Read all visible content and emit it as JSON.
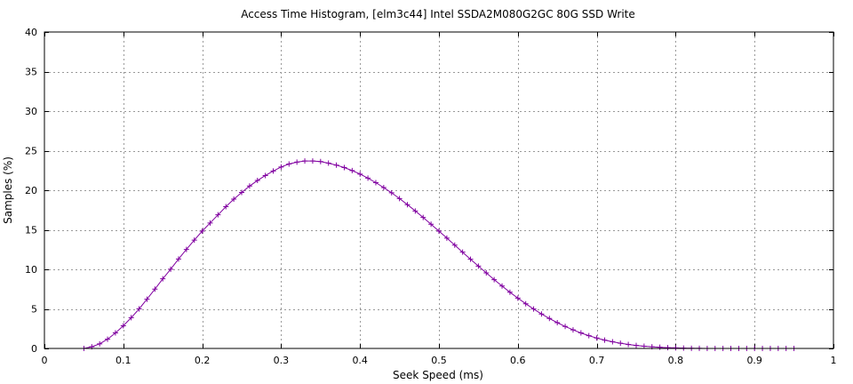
{
  "chart_data": {
    "type": "line",
    "title": "Access Time Histogram, [elm3c44] Intel SSDA2M080G2GC 80G SSD Write",
    "xlabel": "Seek Speed (ms)",
    "ylabel": "Samples (%)",
    "xlim": [
      0,
      1
    ],
    "ylim": [
      0,
      40
    ],
    "xticks": [
      0,
      0.1,
      0.2,
      0.3,
      0.4,
      0.5,
      0.6,
      0.7,
      0.8,
      0.9,
      1
    ],
    "xtick_labels": [
      "0",
      "0.1",
      "0.2",
      "0.3",
      "0.4",
      "0.5",
      "0.6",
      "0.7",
      "0.8",
      "0.9",
      "1"
    ],
    "yticks": [
      0,
      5,
      10,
      15,
      20,
      25,
      30,
      35,
      40
    ],
    "ytick_labels": [
      "0",
      "5",
      "10",
      "15",
      "20",
      "25",
      "30",
      "35",
      "40"
    ],
    "grid": true,
    "marker": "plus",
    "series_color": "#8000a0",
    "series": [
      {
        "x": [
          0.05,
          0.06,
          0.07,
          0.08,
          0.09,
          0.1,
          0.11,
          0.12,
          0.13,
          0.14,
          0.15,
          0.16,
          0.17,
          0.18,
          0.19,
          0.2,
          0.21,
          0.22,
          0.23,
          0.24,
          0.25,
          0.26,
          0.27,
          0.28,
          0.29,
          0.3,
          0.31,
          0.32,
          0.33,
          0.34,
          0.35,
          0.36,
          0.37,
          0.38,
          0.39,
          0.4,
          0.41,
          0.42,
          0.43,
          0.44,
          0.45,
          0.46,
          0.47,
          0.48,
          0.49,
          0.5,
          0.51,
          0.52,
          0.53,
          0.54,
          0.55,
          0.56,
          0.57,
          0.58,
          0.59,
          0.6,
          0.61,
          0.62,
          0.63,
          0.64,
          0.65,
          0.66,
          0.67,
          0.68,
          0.69,
          0.7,
          0.71,
          0.72,
          0.73,
          0.74,
          0.75,
          0.76,
          0.77,
          0.78,
          0.79,
          0.8,
          0.81,
          0.82,
          0.83,
          0.84,
          0.85,
          0.86,
          0.87,
          0.88,
          0.89,
          0.9,
          0.91,
          0.92,
          0.93,
          0.94,
          0.95
        ],
        "y": [
          0.0,
          0.21,
          0.58,
          1.17,
          1.96,
          2.86,
          3.89,
          5.0,
          6.22,
          7.5,
          8.8,
          10.02,
          11.31,
          12.52,
          13.7,
          14.83,
          15.86,
          16.89,
          17.92,
          18.87,
          19.72,
          20.53,
          21.23,
          21.86,
          22.43,
          22.94,
          23.31,
          23.55,
          23.7,
          23.7,
          23.62,
          23.42,
          23.17,
          22.86,
          22.48,
          22.04,
          21.53,
          20.96,
          20.34,
          19.67,
          18.94,
          18.18,
          17.38,
          16.56,
          15.7,
          14.83,
          13.95,
          13.06,
          12.17,
          11.28,
          10.41,
          9.55,
          8.7,
          7.89,
          7.1,
          6.36,
          5.65,
          4.98,
          4.36,
          3.79,
          3.26,
          2.78,
          2.35,
          1.96,
          1.62,
          1.32,
          1.06,
          0.84,
          0.66,
          0.51,
          0.38,
          0.28,
          0.21,
          0.15,
          0.1,
          0.07,
          0.04,
          0.02,
          0.01,
          0.0,
          0.0,
          0.0,
          0.0,
          0.0,
          0.0,
          0.0,
          0.0,
          0.0,
          0.0,
          0.0,
          0.0
        ]
      }
    ]
  }
}
